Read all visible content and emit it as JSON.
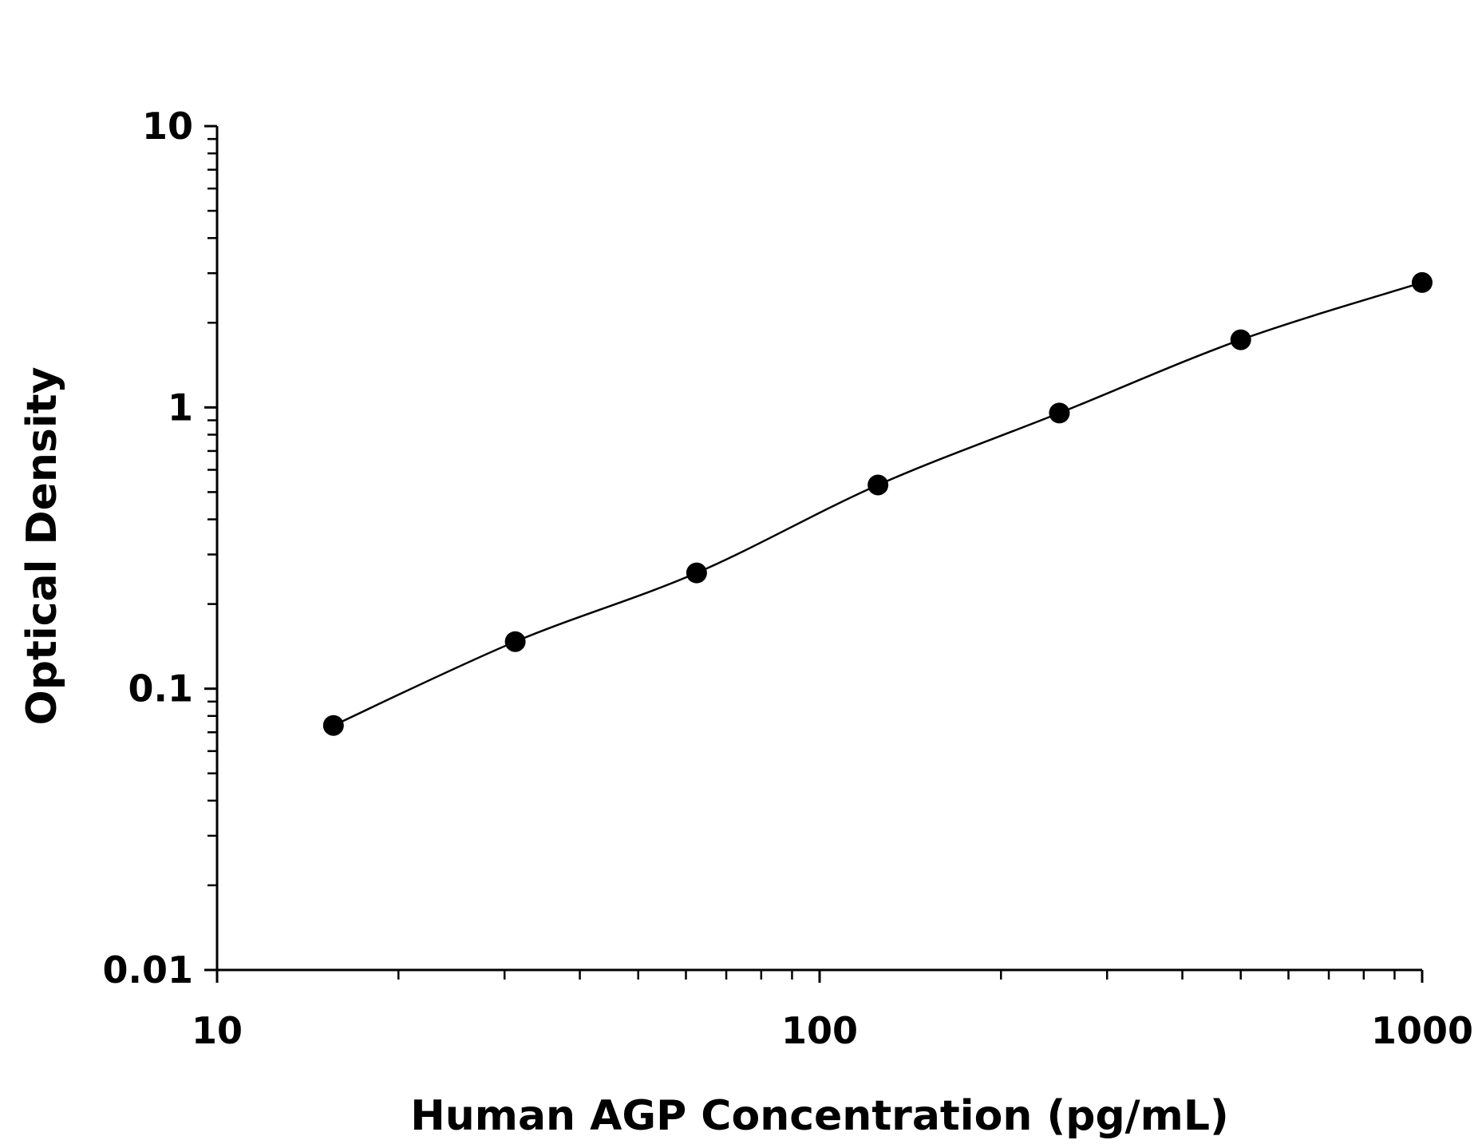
{
  "chart_data": {
    "type": "scatter",
    "title": "",
    "xlabel": "Human AGP Concentration (pg/mL)",
    "ylabel": "Optical Density",
    "x_scale": "log",
    "y_scale": "log",
    "xlim": [
      10,
      1000
    ],
    "ylim": [
      0.01,
      10
    ],
    "x_ticks": [
      10,
      100,
      1000
    ],
    "x_tick_labels": [
      "10",
      "100",
      "1000"
    ],
    "y_ticks": [
      0.01,
      0.1,
      1,
      10
    ],
    "y_tick_labels": [
      "0.01",
      "0.1",
      "1",
      "10"
    ],
    "grid": false,
    "legend": "none",
    "series": [
      {
        "x": [
          15.6,
          31.25,
          62.5,
          125,
          250,
          500,
          1000
        ],
        "y": [
          0.074,
          0.147,
          0.258,
          0.53,
          0.955,
          1.74,
          2.78
        ],
        "fit_curve": true
      }
    ]
  }
}
